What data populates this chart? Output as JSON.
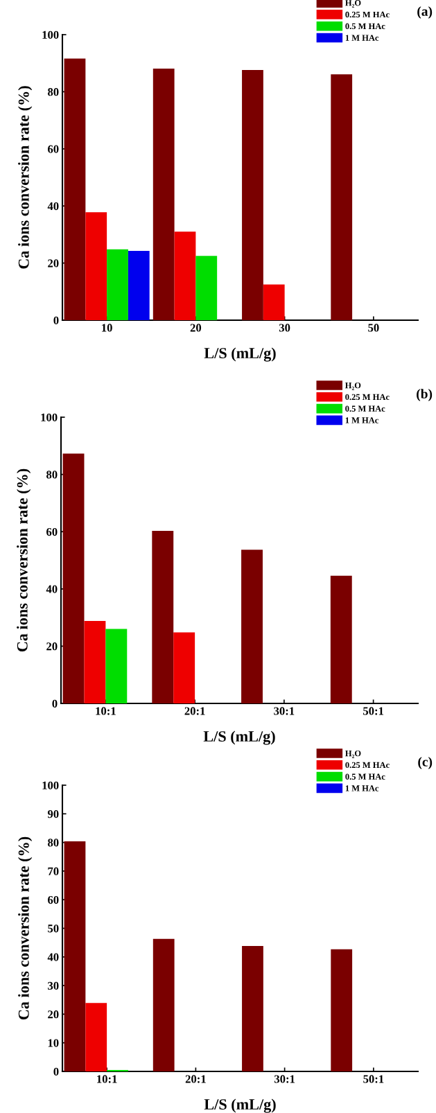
{
  "chart_data": [
    {
      "type": "bar",
      "xlabel": "L/S (mL/g)",
      "ylabel": "Ca ions conversion rate (%)",
      "categories": [
        "10",
        "20",
        "30",
        "50"
      ],
      "ylim": [
        0,
        100
      ],
      "yticks": [
        0,
        20,
        40,
        60,
        80,
        100
      ],
      "legend": "top right",
      "grid": false,
      "annotations": [
        "(a)"
      ],
      "series": [
        {
          "name": "H₂O",
          "color": "#7a0000",
          "values": [
            91.6,
            88.1,
            87.6,
            86.1
          ]
        },
        {
          "name": "0.25 M HAc",
          "color": "#ee0000",
          "values": [
            37.8,
            31.0,
            12.5,
            null
          ]
        },
        {
          "name": "0.5 M HAc",
          "color": "#00dd00",
          "values": [
            24.8,
            22.5,
            null,
            null
          ]
        },
        {
          "name": "1 M HAc",
          "color": "#0000ee",
          "values": [
            24.3,
            null,
            null,
            null
          ]
        }
      ]
    },
    {
      "type": "bar",
      "xlabel": "L/S (mL/g)",
      "ylabel": "Ca ions conversion rate (%)",
      "categories": [
        "10:1",
        "20:1",
        "30:1",
        "50:1"
      ],
      "ylim": [
        0,
        100
      ],
      "yticks": [
        0,
        20,
        40,
        60,
        80,
        100
      ],
      "legend": "top right",
      "grid": false,
      "annotations": [
        "(b)"
      ],
      "series": [
        {
          "name": "H₂O",
          "color": "#7a0000",
          "values": [
            87.3,
            60.3,
            53.7,
            44.6
          ]
        },
        {
          "name": "0.25 M HAc",
          "color": "#ee0000",
          "values": [
            28.8,
            24.8,
            null,
            null
          ]
        },
        {
          "name": "0.5 M HAc",
          "color": "#00dd00",
          "values": [
            26.0,
            null,
            null,
            null
          ]
        },
        {
          "name": "1 M HAc",
          "color": "#0000ee",
          "values": [
            null,
            null,
            null,
            null
          ]
        }
      ]
    },
    {
      "type": "bar",
      "xlabel": "L/S (mL/g)",
      "ylabel": "Ca ions conversion rate (%)",
      "categories": [
        "10:1",
        "20:1",
        "30:1",
        "50:1"
      ],
      "ylim": [
        0,
        100
      ],
      "yticks": [
        0,
        10,
        20,
        30,
        40,
        50,
        60,
        70,
        80,
        90,
        100
      ],
      "legend": "top right",
      "grid": false,
      "annotations": [
        "(c)"
      ],
      "series": [
        {
          "name": "H₂O",
          "color": "#7a0000",
          "values": [
            80.4,
            46.3,
            43.8,
            42.7
          ]
        },
        {
          "name": "0.25 M HAc",
          "color": "#ee0000",
          "values": [
            23.9,
            null,
            null,
            null
          ]
        },
        {
          "name": "0.5 M HAc",
          "color": "#00dd00",
          "values": [
            0.5,
            null,
            null,
            null
          ]
        },
        {
          "name": "1 M HAc",
          "color": "#0000ee",
          "values": [
            null,
            null,
            null,
            null
          ]
        }
      ]
    }
  ]
}
